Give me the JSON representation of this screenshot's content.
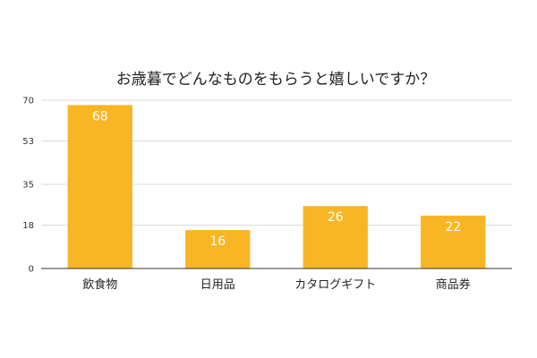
{
  "chart_data": {
    "type": "bar",
    "title": "お歳暮でどんなものをもらうと嬉しいですか？",
    "categories": [
      "飲食物",
      "日用品",
      "カタログギフト",
      "商品券"
    ],
    "values": [
      68,
      16,
      26,
      22
    ],
    "data_labels": [
      "68",
      "16",
      "26",
      "22"
    ],
    "yticks": [
      0,
      18,
      35,
      53,
      70
    ],
    "ytick_labels": [
      "0",
      "18",
      "35",
      "53",
      "70"
    ],
    "ylim": [
      0,
      70
    ],
    "xlabel": "",
    "ylabel": "",
    "grid": true,
    "legend": "none",
    "colors": {
      "bar": "#F8B625",
      "grid": "#D9D9D9",
      "axis": "#333333",
      "data_label": "#FFFFFF"
    }
  }
}
